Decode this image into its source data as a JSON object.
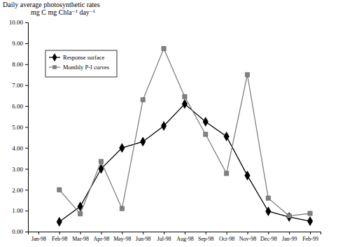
{
  "chart_data": {
    "type": "line",
    "ylabel": [
      "Daily average photosynthetic rates",
      "mg C mg Chla⁻¹ day⁻¹"
    ],
    "categories": [
      "Jan-98",
      "Feb-98",
      "Mar-98",
      "Apr-98",
      "May-98",
      "Jun-98",
      "Jul-98",
      "Aug-98",
      "Sep-98",
      "Oct-98",
      "Nov-98",
      "Dec-98",
      "Jan-99",
      "Feb-99"
    ],
    "series": [
      {
        "name": "Response surface",
        "color": "#000000",
        "marker": "diamond",
        "values": [
          null,
          0.47,
          1.2,
          3.0,
          4.0,
          4.3,
          5.05,
          6.1,
          5.25,
          4.55,
          2.68,
          0.97,
          0.7,
          0.5
        ]
      },
      {
        "name": "Monthly P-I curves",
        "color": "#808080",
        "marker": "square",
        "values": [
          null,
          2.0,
          0.85,
          3.35,
          1.1,
          6.3,
          8.75,
          6.45,
          4.65,
          2.78,
          7.5,
          1.6,
          0.75,
          0.87
        ]
      }
    ],
    "ylim": [
      0,
      10
    ],
    "yticks": [
      {
        "value": 0,
        "label": "0.00"
      },
      {
        "value": 1,
        "label": "1.00"
      },
      {
        "value": 2,
        "label": "2.00"
      },
      {
        "value": 3,
        "label": "3.00"
      },
      {
        "value": 4,
        "label": "4.00"
      },
      {
        "value": 5,
        "label": "5.00"
      },
      {
        "value": 6,
        "label": "6.00"
      },
      {
        "value": 7,
        "label": "7.00"
      },
      {
        "value": 8,
        "label": "8.00"
      },
      {
        "value": 9,
        "label": "9.00"
      },
      {
        "value": 10,
        "label": "10.00"
      }
    ],
    "grid": false,
    "legend": "upper left"
  }
}
